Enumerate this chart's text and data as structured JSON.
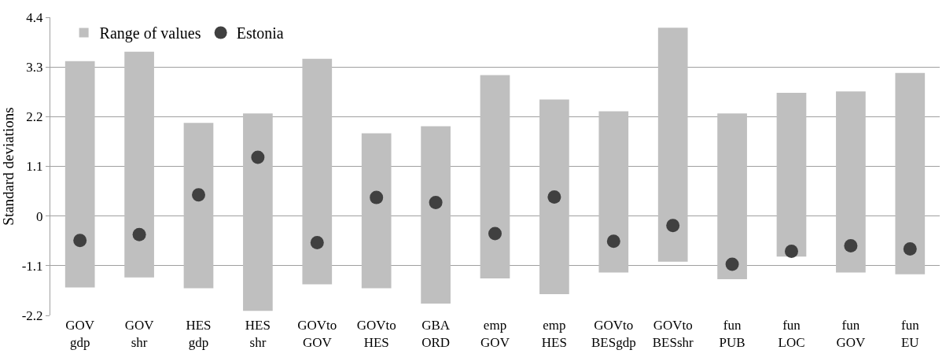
{
  "chart_data": {
    "type": "bar",
    "ylabel": "Standard deviations",
    "categories": [
      "GOV\ngdp",
      "GOV\nshr",
      "HES\ngdp",
      "HES\nshr",
      "GOVto\nGOV",
      "GOVto\nHES",
      "GBA\nORD",
      "emp\nGOV",
      "emp\nHES",
      "GOVto\nBESgdp",
      "GOVto\nBESshr",
      "fun\nPUB",
      "fun\nLOC",
      "fun\nGOV",
      "fun\nEU"
    ],
    "series": [
      {
        "name": "Range of values",
        "color": "#bfbfbf",
        "base": [
          -1.58,
          -1.36,
          -1.6,
          -2.1,
          -1.51,
          -1.6,
          -1.94,
          -1.38,
          -1.73,
          -1.25,
          -1.01,
          -1.4,
          -0.9,
          -1.25,
          -1.29
        ],
        "values": [
          5.01,
          5.0,
          3.66,
          4.37,
          4.99,
          3.43,
          3.93,
          4.5,
          4.31,
          3.57,
          5.18,
          3.67,
          3.63,
          4.01,
          4.46
        ]
      },
      {
        "name": "Estonia",
        "type": "scatter",
        "color": "#404040",
        "marker": "circle",
        "values": [
          -0.54,
          -0.41,
          0.47,
          1.3,
          -0.59,
          0.41,
          0.3,
          -0.39,
          0.42,
          -0.56,
          -0.21,
          -1.07,
          -0.78,
          -0.66,
          -0.73
        ]
      }
    ],
    "ylim": [
      -2.2,
      4.4
    ],
    "yticks": [
      -2.2,
      -1.1,
      0,
      1.1,
      2.2,
      3.3,
      4.4
    ],
    "grid": "y",
    "legend": "top left"
  }
}
